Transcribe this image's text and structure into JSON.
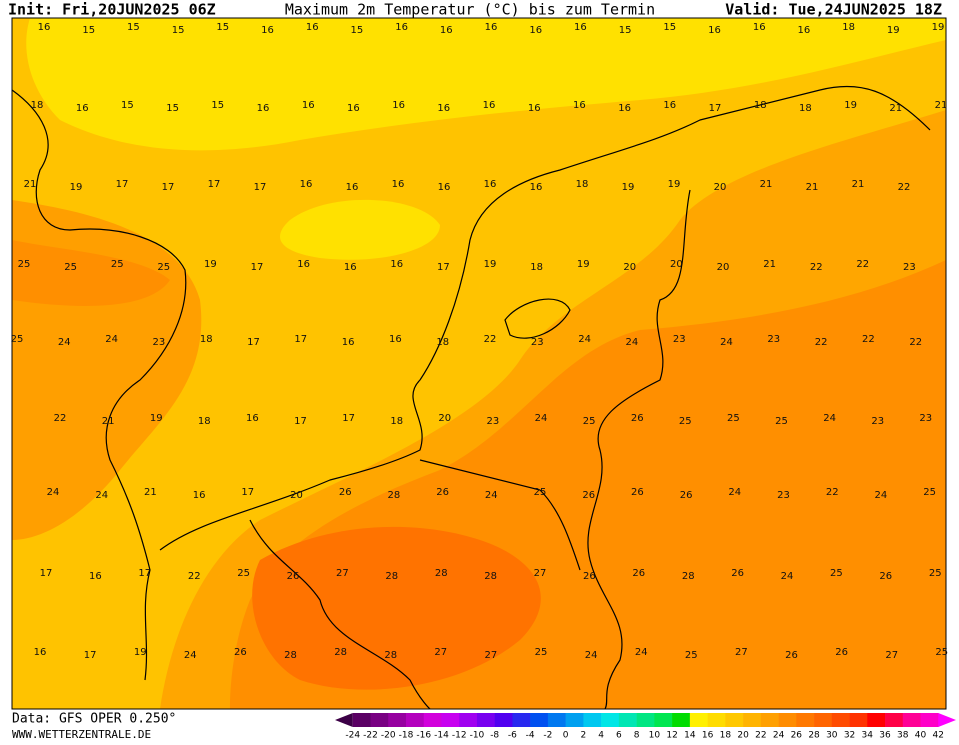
{
  "header": {
    "init": "Init: Fri,20JUN2025 06Z",
    "title": "Maximum 2m Temperatur (°C) bis zum Termin",
    "valid": "Valid: Tue,24JUN2025 18Z"
  },
  "footer": {
    "data": "Data: GFS OPER 0.250°",
    "site": "WWW.WETTERZENTRALE.DE"
  },
  "map_labels": [
    [
      16,
      15,
      15,
      15,
      15,
      16,
      16,
      15,
      16,
      16,
      16,
      16,
      16,
      15,
      15,
      16,
      16,
      16,
      18,
      19,
      19
    ],
    [
      18,
      16,
      15,
      15,
      15,
      16,
      16,
      16,
      16,
      16,
      16,
      16,
      16,
      16,
      16,
      17,
      18,
      18,
      19,
      21,
      21
    ],
    [
      21,
      19,
      17,
      17,
      17,
      17,
      16,
      16,
      16,
      16,
      16,
      16,
      18,
      19,
      19,
      20,
      21,
      21,
      21,
      22
    ],
    [
      25,
      25,
      25,
      25,
      19,
      17,
      16,
      16,
      16,
      17,
      19,
      18,
      19,
      20,
      20,
      20,
      21,
      22,
      22,
      23
    ],
    [
      25,
      24,
      24,
      23,
      18,
      17,
      17,
      16,
      16,
      18,
      22,
      23,
      24,
      24,
      23,
      24,
      23,
      22,
      22,
      22
    ],
    [
      22,
      21,
      19,
      18,
      16,
      17,
      17,
      18,
      20,
      23,
      24,
      25,
      26,
      25,
      25,
      25,
      24,
      23,
      23
    ],
    [
      24,
      24,
      21,
      16,
      17,
      20,
      26,
      28,
      26,
      24,
      25,
      26,
      26,
      26,
      24,
      23,
      22,
      24,
      25
    ],
    [
      17,
      16,
      17,
      22,
      25,
      26,
      27,
      28,
      28,
      28,
      27,
      26,
      26,
      28,
      26,
      24,
      25,
      26,
      25
    ],
    [
      16,
      17,
      19,
      24,
      26,
      28,
      28,
      28,
      27,
      27,
      25,
      24,
      24,
      25,
      27,
      26,
      26,
      27,
      25
    ]
  ],
  "colorbar": {
    "ticks": [
      -24,
      -22,
      -20,
      -18,
      -16,
      -14,
      -12,
      -10,
      -8,
      -6,
      -4,
      -2,
      0,
      2,
      4,
      6,
      8,
      10,
      12,
      14,
      16,
      18,
      20,
      22,
      24,
      26,
      28,
      30,
      32,
      34,
      36,
      38,
      40,
      42
    ],
    "colors": [
      "#3c0046",
      "#5a0064",
      "#780082",
      "#9600a0",
      "#b400be",
      "#d200dc",
      "#c800f0",
      "#a000f0",
      "#7800f0",
      "#5000f0",
      "#2828f0",
      "#0050f0",
      "#0078f0",
      "#00a0f0",
      "#00c8f0",
      "#00e6e6",
      "#00e6b4",
      "#00e682",
      "#00e650",
      "#00dc00",
      "#fff000",
      "#ffdc00",
      "#ffc800",
      "#ffb400",
      "#ffa000",
      "#ff8c00",
      "#ff7800",
      "#ff6400",
      "#ff4b00",
      "#ff3200",
      "#ff0000",
      "#ff0046",
      "#ff0096",
      "#ff00c8",
      "#ff00ff"
    ]
  }
}
